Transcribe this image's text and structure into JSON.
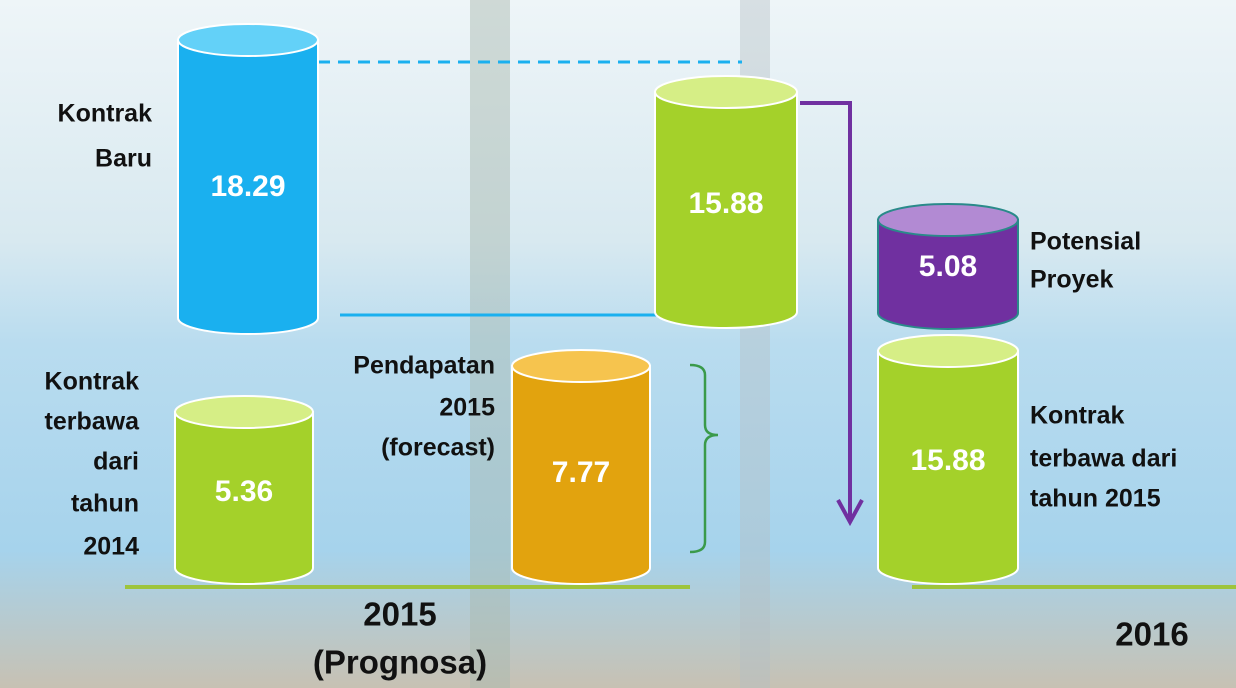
{
  "labels": {
    "kontrak_baru": [
      "Kontrak",
      "Baru"
    ],
    "kontrak_2014": [
      "Kontrak",
      "terbawa",
      "dari",
      "tahun",
      "2014"
    ],
    "pendapatan": [
      "Pendapatan",
      "2015",
      "(forecast)"
    ],
    "potensial": [
      "Potensial",
      "Proyek"
    ],
    "kontrak_2015": [
      "Kontrak",
      "terbawa dari",
      "tahun 2015"
    ],
    "year_2015": [
      "2015",
      "(Prognosa)"
    ],
    "year_2016": "2016"
  },
  "cylinders": [
    {
      "value": 18.29
    },
    {
      "value": 15.88
    },
    {
      "value": 5.36
    },
    {
      "value": 7.77
    },
    {
      "value": 5.08
    },
    {
      "value": 15.88
    }
  ]
}
